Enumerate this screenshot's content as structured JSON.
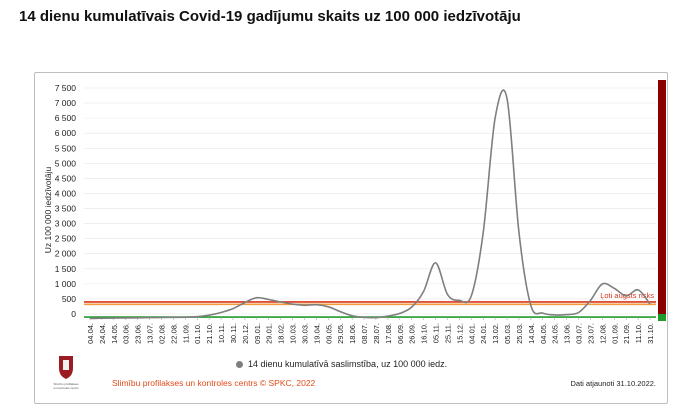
{
  "header": {
    "title": "14 dienu kumulatīvais Covid-19 gadījumu skaits uz 100 000 iedzīvotāju"
  },
  "colors": {
    "line": "#7f7f7f",
    "high_risk_band": "#8b0000",
    "threshold_red": "#d9341c",
    "threshold_orange": "#f29b38",
    "threshold_green": "#1f9b2e",
    "footer_text": "#e34a1a"
  },
  "chart_data": {
    "type": "line",
    "title": "",
    "xlabel": "",
    "ylabel": "Uz 100 000 iedzīvotāju",
    "ylim": [
      0,
      7500
    ],
    "yticks": [
      "7 500",
      "7 000",
      "6 500",
      "6 000",
      "5 500",
      "5 000",
      "4 500",
      "4 000",
      "3 500",
      "3 000",
      "2 500",
      "2 000",
      "1 500",
      "1 000",
      "500",
      "0"
    ],
    "ytick_values": [
      7500,
      7000,
      6500,
      6000,
      5500,
      5000,
      4500,
      4000,
      3500,
      3000,
      2500,
      2000,
      1500,
      1000,
      500,
      0
    ],
    "categories": [
      "04.04.",
      "24.04.",
      "14.05.",
      "03.06.",
      "23.06.",
      "13.07.",
      "02.08.",
      "22.08.",
      "11.09.",
      "01.10.",
      "21.10.",
      "10.11.",
      "30.11.",
      "20.12.",
      "09.01.",
      "29.01.",
      "18.02.",
      "10.03.",
      "30.03.",
      "19.04.",
      "09.05.",
      "29.05.",
      "18.06.",
      "08.07.",
      "28.07.",
      "17.08.",
      "06.09.",
      "26.09.",
      "16.10.",
      "05.11.",
      "25.11.",
      "15.12.",
      "04.01.",
      "24.01.",
      "13.02.",
      "05.03.",
      "25.03.",
      "14.04.",
      "04.05.",
      "24.05.",
      "13.06.",
      "03.07.",
      "23.07.",
      "12.08.",
      "01.09.",
      "21.09.",
      "11.10.",
      "31.10."
    ],
    "series": [
      {
        "name": "14 dienu kumulatīvā saslimstība, uz 100 000 iedz.",
        "values": [
          -150,
          -140,
          -135,
          -130,
          -125,
          -120,
          -115,
          -110,
          -105,
          -90,
          -40,
          50,
          180,
          380,
          540,
          480,
          400,
          330,
          290,
          310,
          240,
          80,
          -60,
          -110,
          -120,
          -70,
          20,
          230,
          750,
          1700,
          650,
          450,
          600,
          2700,
          6500,
          7150,
          2700,
          280,
          30,
          -30,
          -20,
          50,
          450,
          1000,
          850,
          600,
          800,
          330
        ]
      }
    ],
    "thresholds": [
      {
        "label": "Ļoti augsts risks",
        "value": 400,
        "color": "#d9341c"
      },
      {
        "value": 320,
        "color": "#f29b38"
      },
      {
        "value": -100,
        "color": "#1f9b2e"
      }
    ],
    "grid": true,
    "legend_position": "bottom"
  },
  "footer": {
    "source": "Slimību profilakses un kontroles centrs © SPKC, 2022",
    "updated": "Dati atjaunoti 31.10.2022.",
    "logo_text": [
      "Slimību profilakses",
      "un kontroles centrs"
    ]
  }
}
